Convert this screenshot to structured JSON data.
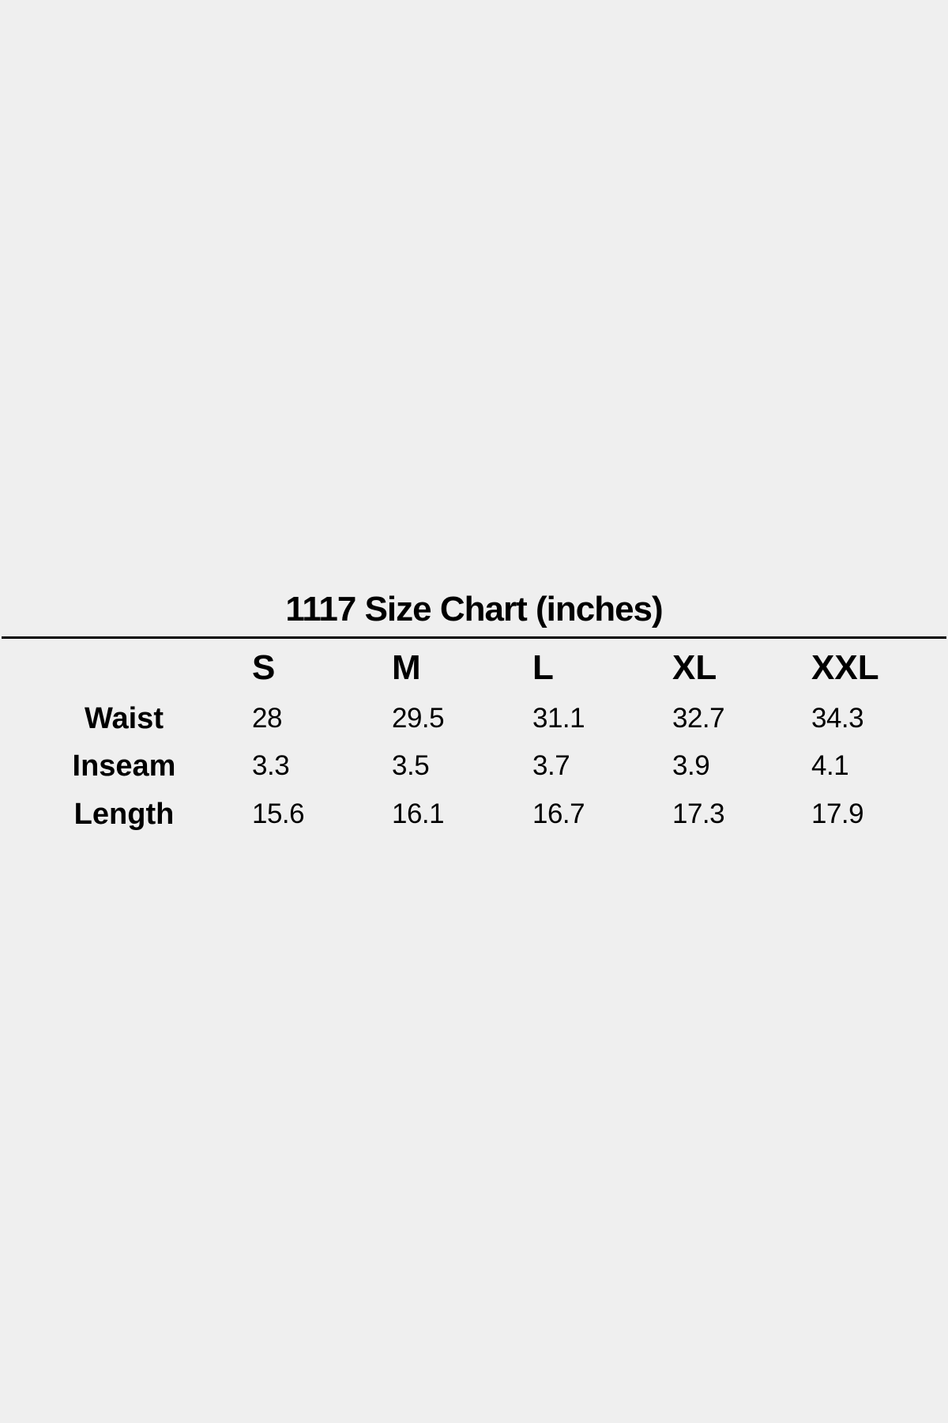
{
  "title": "1117 Size Chart (inches)",
  "table": {
    "columns": [
      "S",
      "M",
      "L",
      "XL",
      "XXL"
    ],
    "rows": [
      {
        "label": "Waist",
        "values": [
          "28",
          "29.5",
          "31.1",
          "32.7",
          "34.3"
        ]
      },
      {
        "label": "Inseam",
        "values": [
          "3.3",
          "3.5",
          "3.7",
          "3.9",
          "4.1"
        ]
      },
      {
        "label": "Length",
        "values": [
          "15.6",
          "16.1",
          "16.7",
          "17.3",
          "17.9"
        ]
      }
    ]
  }
}
